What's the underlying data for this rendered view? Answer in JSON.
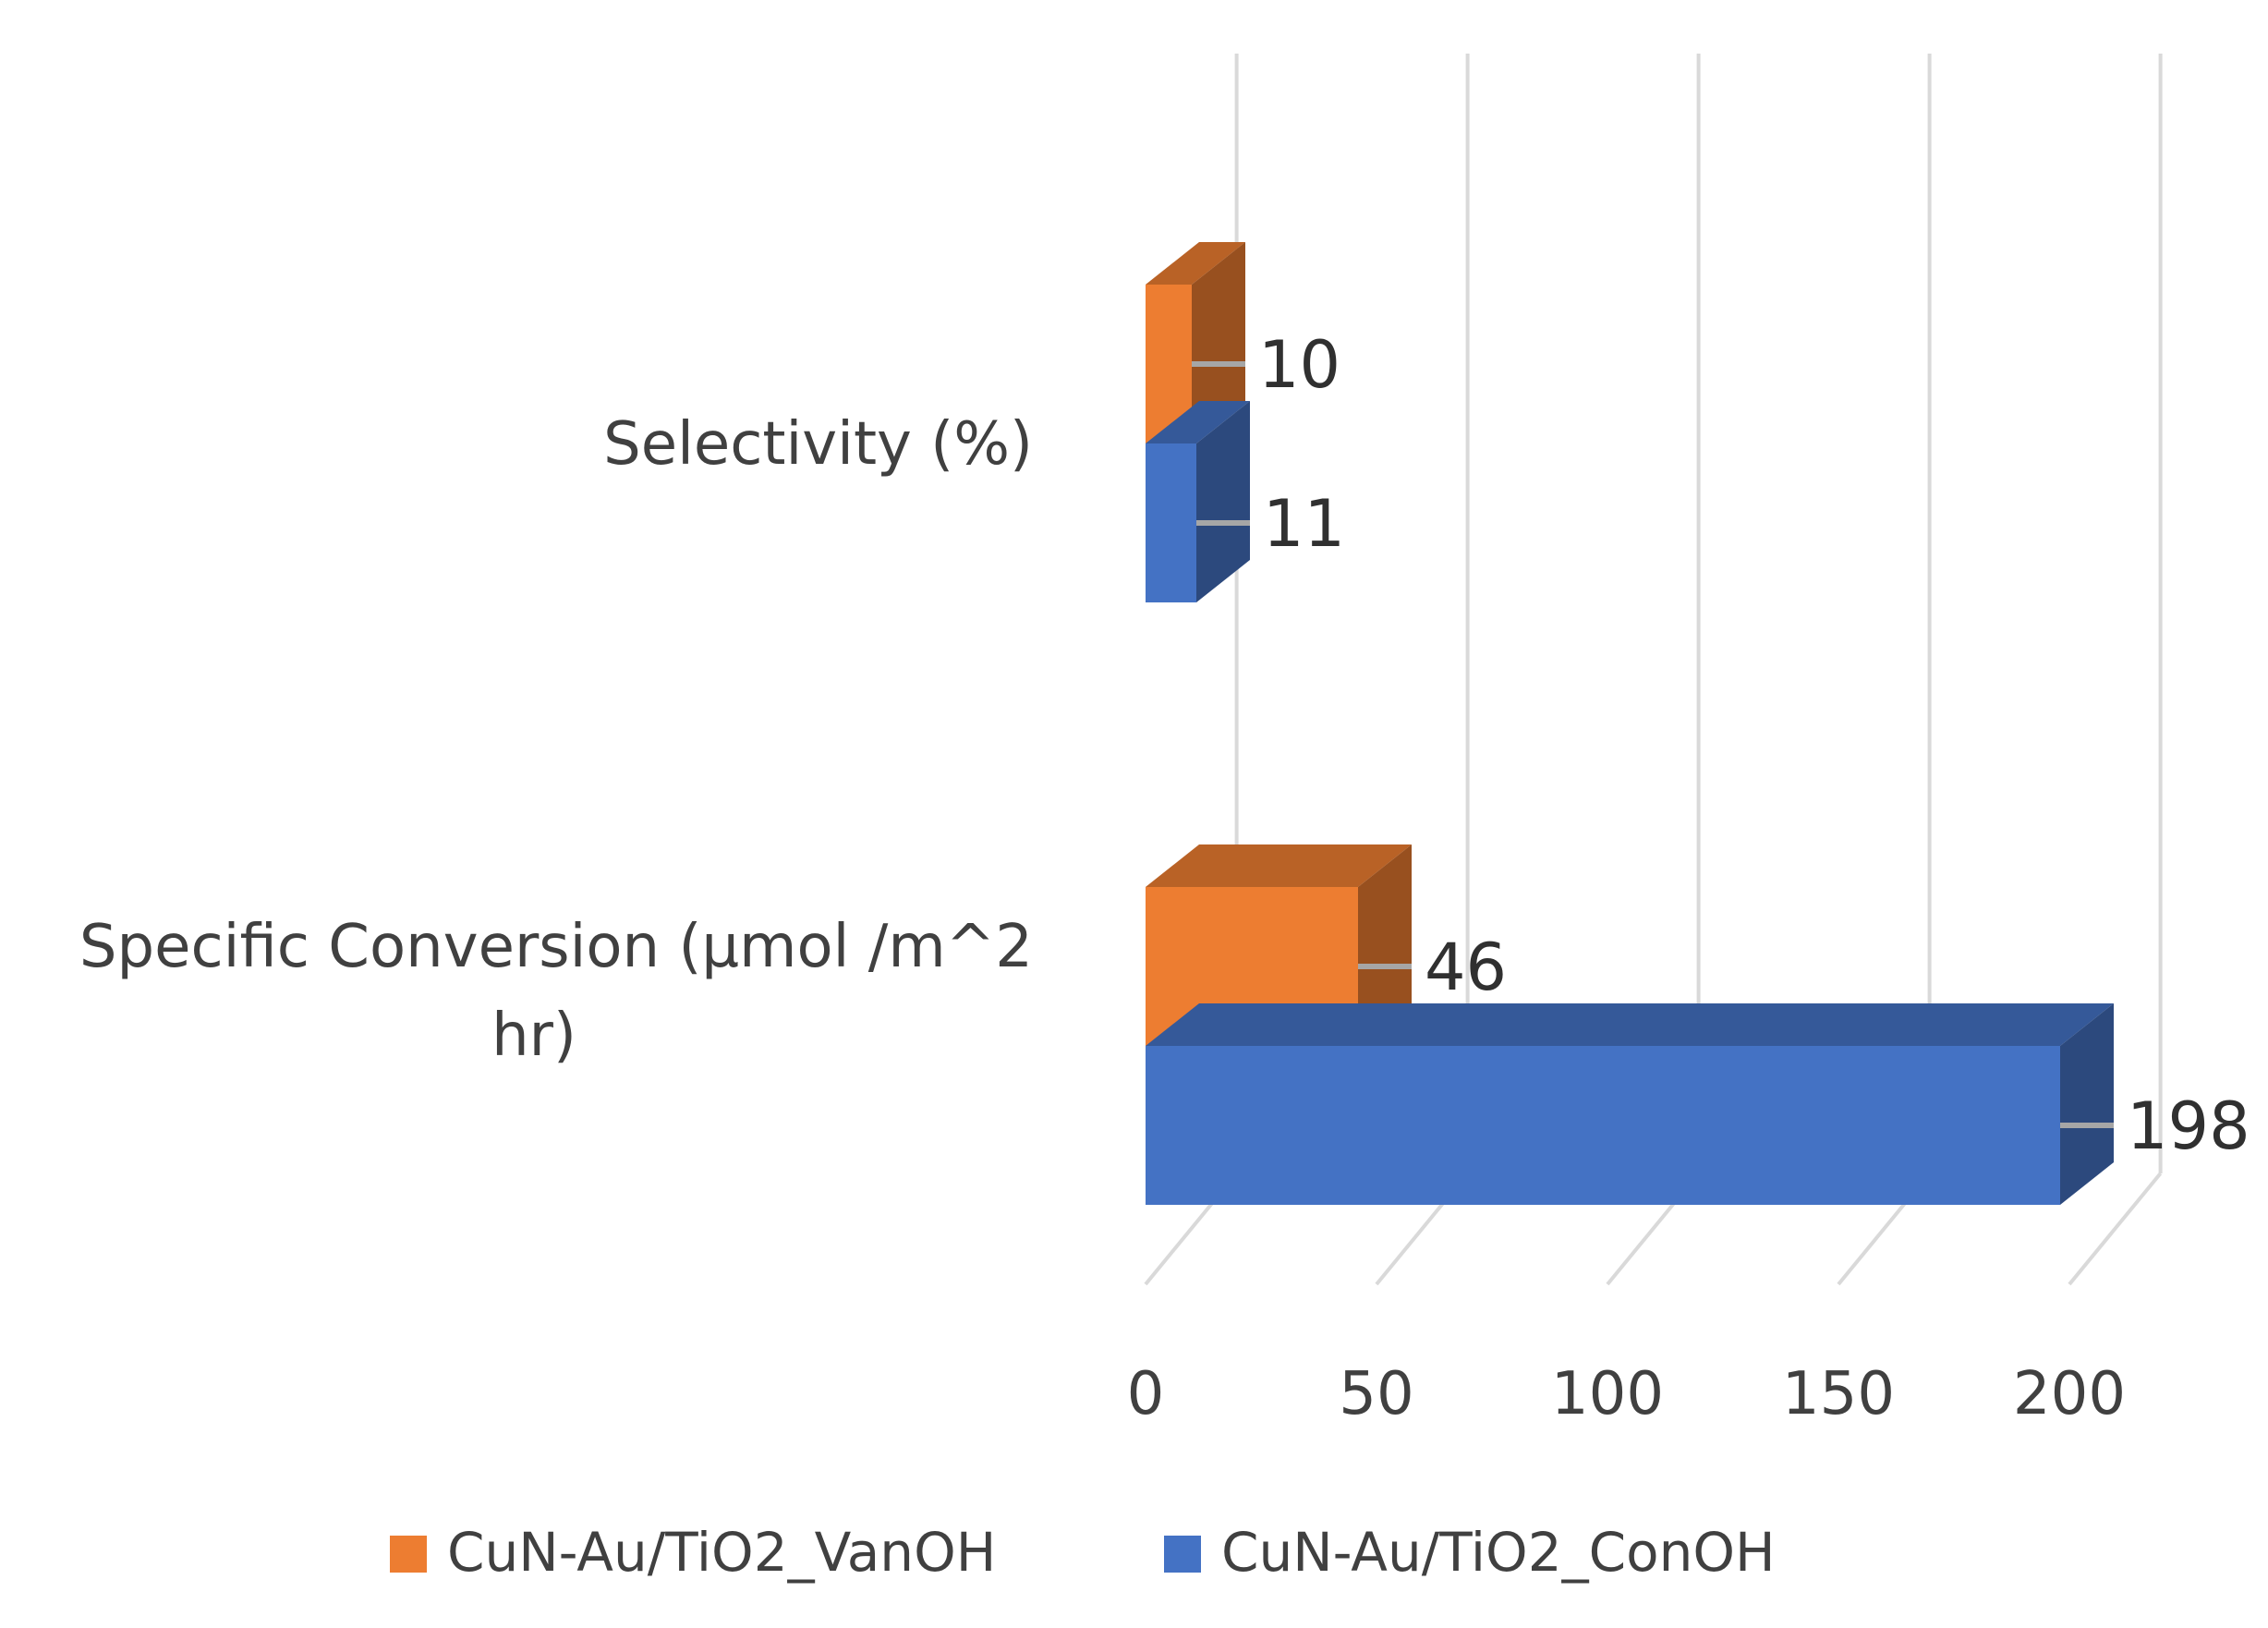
{
  "chart_data": {
    "type": "bar",
    "orientation": "horizontal",
    "style": "3d-clustered",
    "categories": [
      "Specific Conversion (µmol /m^2 hr)",
      "Selectivity (%)"
    ],
    "category_lines": [
      [
        "Specific Conversion (µmol /m^2",
        "hr)"
      ],
      [
        "Selectivity (%)"
      ]
    ],
    "series": [
      {
        "name": "CuN-Au/TiO2_ConOH",
        "color": "#4472C4",
        "values": [
          198,
          11
        ]
      },
      {
        "name": "CuN-Au/TiO2_VanOH",
        "color": "#ED7D31",
        "values": [
          46,
          10
        ]
      }
    ],
    "xlim": [
      0,
      200
    ],
    "xticks": [
      0,
      50,
      100,
      150,
      200
    ],
    "xtick_labels": [
      "0",
      "50",
      "100",
      "150",
      "200"
    ],
    "grid": true,
    "legend_position": "bottom",
    "legend": [
      {
        "name": "CuN-Au/TiO2_VanOH",
        "color": "#ED7D31"
      },
      {
        "name": "CuN-Au/TiO2_ConOH",
        "color": "#4472C4"
      }
    ],
    "title": "",
    "xlabel": "",
    "ylabel": ""
  }
}
